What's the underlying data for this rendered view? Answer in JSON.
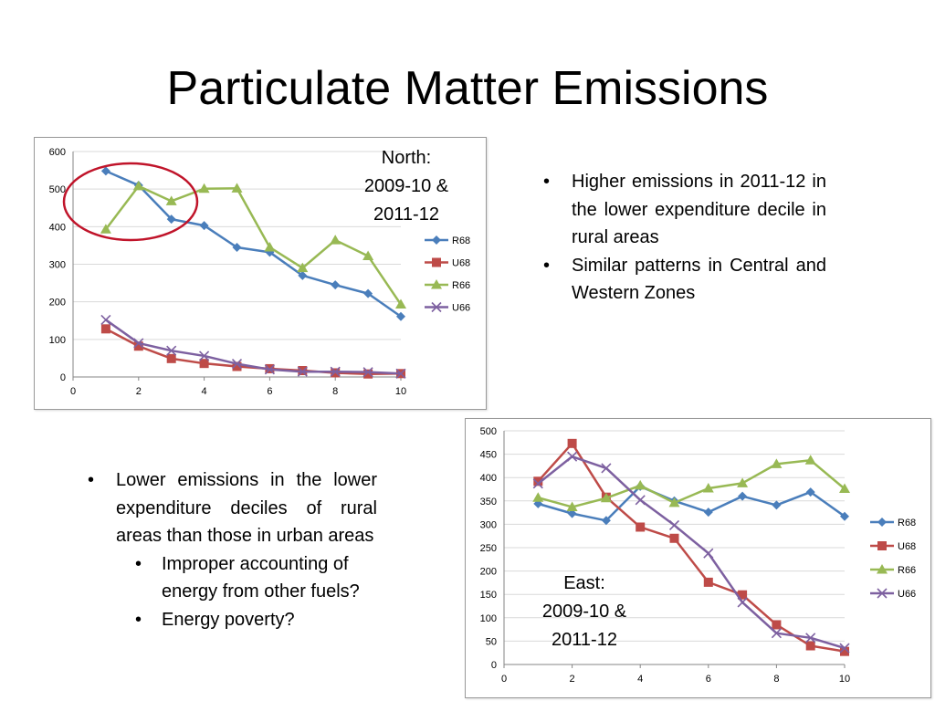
{
  "title": "Particulate Matter Emissions",
  "colors": {
    "R68": "#4a7ebb",
    "U68": "#be4b48",
    "R66": "#98b954",
    "U66": "#7d60a0",
    "highlight": "#c0142a"
  },
  "north_label": [
    "North:",
    "2009-10 &",
    "2011-12"
  ],
  "east_label": [
    "East:",
    "2009-10 &",
    "2011-12"
  ],
  "bullets_top": [
    "Higher emissions in 2011-12 in the lower expenditure decile in rural areas",
    "Similar patterns in Central and Western Zones"
  ],
  "bullets_left": {
    "main": "Lower emissions in the lower expenditure deciles of rural areas than those in urban areas",
    "sub": [
      "Improper accounting of energy from other fuels?",
      "Energy poverty?"
    ]
  },
  "chart_data": [
    {
      "id": "north",
      "type": "line",
      "title": "North: 2009-10 & 2011-12",
      "x": [
        1,
        2,
        3,
        4,
        5,
        6,
        7,
        8,
        9,
        10
      ],
      "xlim": [
        0,
        10
      ],
      "xticks": [
        0,
        2,
        4,
        6,
        8,
        10
      ],
      "ylim": [
        0,
        600
      ],
      "yticks": [
        0,
        100,
        200,
        300,
        400,
        500,
        600
      ],
      "grid": true,
      "legend": "right",
      "series": [
        {
          "name": "R68",
          "marker": "diamond",
          "values": [
            548,
            510,
            420,
            403,
            345,
            332,
            270,
            245,
            222,
            161
          ]
        },
        {
          "name": "U68",
          "marker": "square",
          "values": [
            128,
            82,
            49,
            36,
            28,
            22,
            17,
            11,
            8,
            9
          ]
        },
        {
          "name": "R66",
          "marker": "triangle",
          "values": [
            393,
            508,
            468,
            501,
            502,
            345,
            290,
            364,
            322,
            193
          ]
        },
        {
          "name": "U66",
          "marker": "x",
          "values": [
            152,
            90,
            70,
            56,
            35,
            20,
            14,
            14,
            13,
            9
          ]
        }
      ],
      "annotation": "red circle around deciles 1-3"
    },
    {
      "id": "east",
      "type": "line",
      "title": "East: 2009-10 & 2011-12",
      "x": [
        1,
        2,
        3,
        4,
        5,
        6,
        7,
        8,
        9,
        10
      ],
      "xlim": [
        0,
        10
      ],
      "xticks": [
        0,
        2,
        4,
        6,
        8,
        10
      ],
      "ylim": [
        0,
        500
      ],
      "yticks": [
        0,
        50,
        100,
        150,
        200,
        250,
        300,
        350,
        400,
        450,
        500
      ],
      "grid": true,
      "legend": "right",
      "series": [
        {
          "name": "R68",
          "marker": "diamond",
          "values": [
            344,
            323,
            308,
            381,
            350,
            326,
            360,
            341,
            369,
            317
          ]
        },
        {
          "name": "U68",
          "marker": "square",
          "values": [
            392,
            473,
            358,
            294,
            270,
            176,
            149,
            85,
            40,
            28
          ]
        },
        {
          "name": "R66",
          "marker": "triangle",
          "values": [
            357,
            337,
            356,
            383,
            346,
            377,
            388,
            429,
            437,
            376
          ]
        },
        {
          "name": "U66",
          "marker": "x",
          "values": [
            387,
            445,
            420,
            352,
            298,
            238,
            133,
            67,
            57,
            35
          ]
        }
      ]
    }
  ]
}
